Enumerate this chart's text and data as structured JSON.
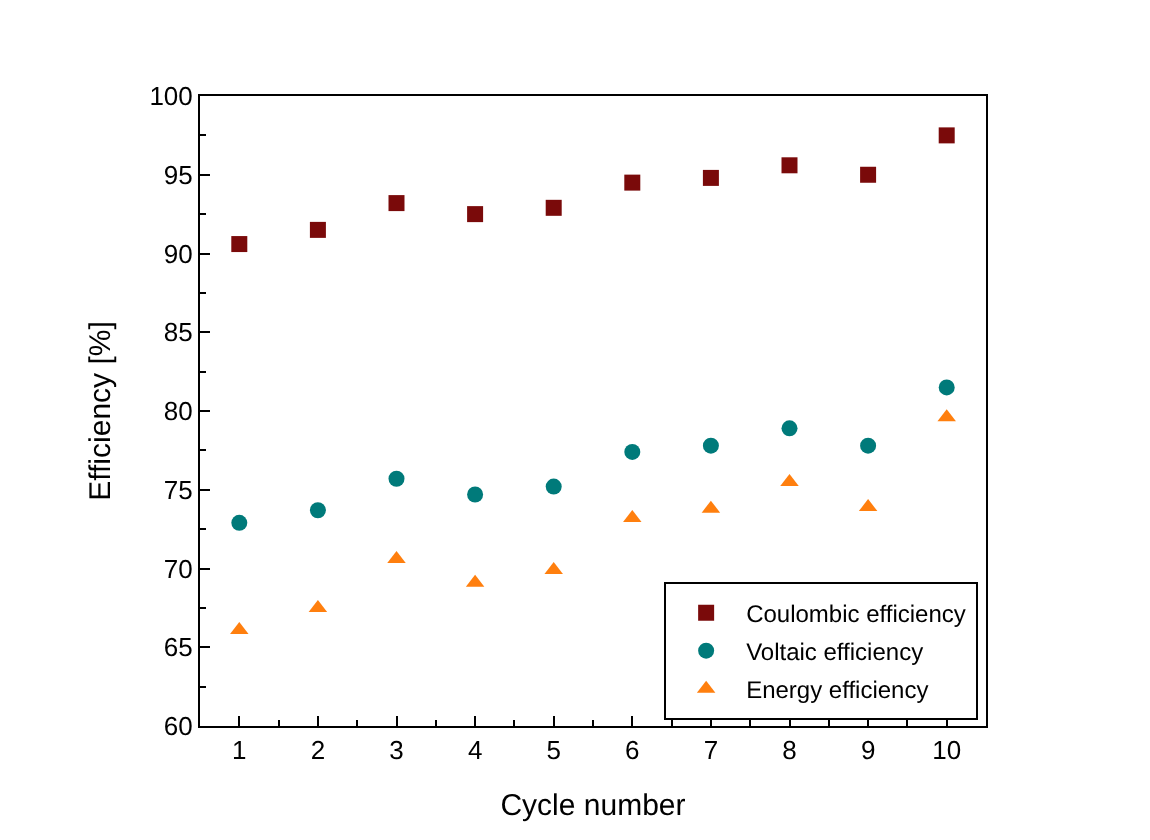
{
  "chart_data": {
    "type": "scatter",
    "xlabel": "Cycle number",
    "ylabel": "Efficiency [%]",
    "x": [
      1,
      2,
      3,
      4,
      5,
      6,
      7,
      8,
      9,
      10
    ],
    "series": [
      {
        "name": "Coulombic efficiency",
        "color": "#7a0a0a",
        "marker": "square",
        "values": [
          90.6,
          91.5,
          93.2,
          92.5,
          92.9,
          94.5,
          94.8,
          95.6,
          95.0,
          97.5
        ]
      },
      {
        "name": "Voltaic efficiency",
        "color": "#007a7a",
        "marker": "circle",
        "values": [
          72.9,
          73.7,
          75.7,
          74.7,
          75.2,
          77.4,
          77.8,
          78.9,
          77.8,
          81.5
        ]
      },
      {
        "name": "Energy efficiency",
        "color": "#ff7f0e",
        "marker": "triangle",
        "values": [
          66.1,
          67.5,
          70.6,
          69.1,
          69.9,
          73.2,
          73.8,
          75.5,
          73.9,
          79.6
        ]
      }
    ],
    "xlim": [
      0.5,
      10.5
    ],
    "xticks": [
      1,
      2,
      3,
      4,
      5,
      6,
      7,
      8,
      9,
      10
    ],
    "ylim": [
      60,
      100
    ],
    "yticks": [
      60,
      65,
      70,
      75,
      80,
      85,
      90,
      95,
      100
    ],
    "legend": "bottom right"
  }
}
